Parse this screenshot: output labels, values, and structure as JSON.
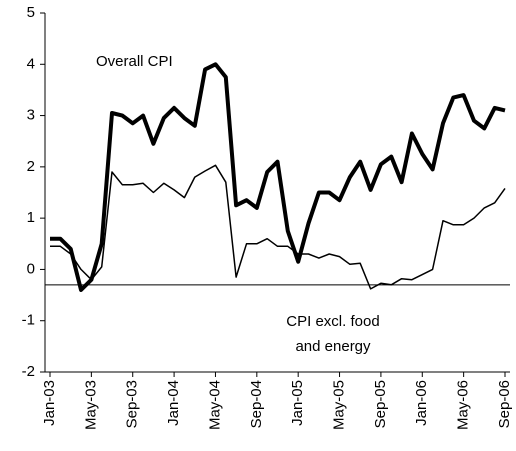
{
  "chart_data": {
    "type": "line",
    "annotations": [
      "Overall CPI",
      "CPI excl. food",
      "and energy"
    ],
    "categories": [
      "Jan-03",
      null,
      null,
      null,
      "May-03",
      null,
      null,
      null,
      "Sep-03",
      null,
      null,
      null,
      "Jan-04",
      null,
      null,
      null,
      "May-04",
      null,
      null,
      null,
      "Sep-04",
      null,
      null,
      null,
      "Jan-05",
      null,
      null,
      null,
      "May-05",
      null,
      null,
      null,
      "Sep-05",
      null,
      null,
      null,
      "Jan-06",
      null,
      null,
      null,
      "May-06",
      null,
      null,
      null,
      "Sep-06"
    ],
    "series": [
      {
        "color": "#000000",
        "width": 4,
        "values": [
          0.6,
          0.6,
          0.4,
          -0.4,
          -0.2,
          0.5,
          3.05,
          3.0,
          2.85,
          3.0,
          2.45,
          2.95,
          3.15,
          2.95,
          2.8,
          3.9,
          4.0,
          3.75,
          1.25,
          1.35,
          1.2,
          1.9,
          2.1,
          0.75,
          0.15,
          0.9,
          1.5,
          1.5,
          1.35,
          1.8,
          2.1,
          1.55,
          2.05,
          2.2,
          1.7,
          2.65,
          2.25,
          1.95,
          2.85,
          3.35,
          3.4,
          2.9,
          2.75,
          3.15,
          3.1
        ]
      },
      {
        "color": "#000000",
        "width": 1.5,
        "values": [
          0.45,
          0.45,
          0.3,
          0.0,
          -0.2,
          0.05,
          1.9,
          1.65,
          1.65,
          1.68,
          1.5,
          1.68,
          1.55,
          1.4,
          1.8,
          1.92,
          2.03,
          1.7,
          -0.15,
          0.5,
          0.5,
          0.6,
          0.45,
          0.45,
          0.3,
          0.3,
          0.22,
          0.3,
          0.25,
          0.1,
          0.12,
          -0.38,
          -0.27,
          -0.3,
          -0.18,
          -0.2,
          -0.1,
          0.0,
          0.95,
          0.87,
          0.87,
          1.0,
          1.2,
          1.3,
          1.58
        ]
      }
    ],
    "reference_line": -0.3,
    "ylim": [
      -2,
      5
    ],
    "yticks": [
      -2,
      -1,
      0,
      1,
      2,
      3,
      4,
      5
    ]
  }
}
